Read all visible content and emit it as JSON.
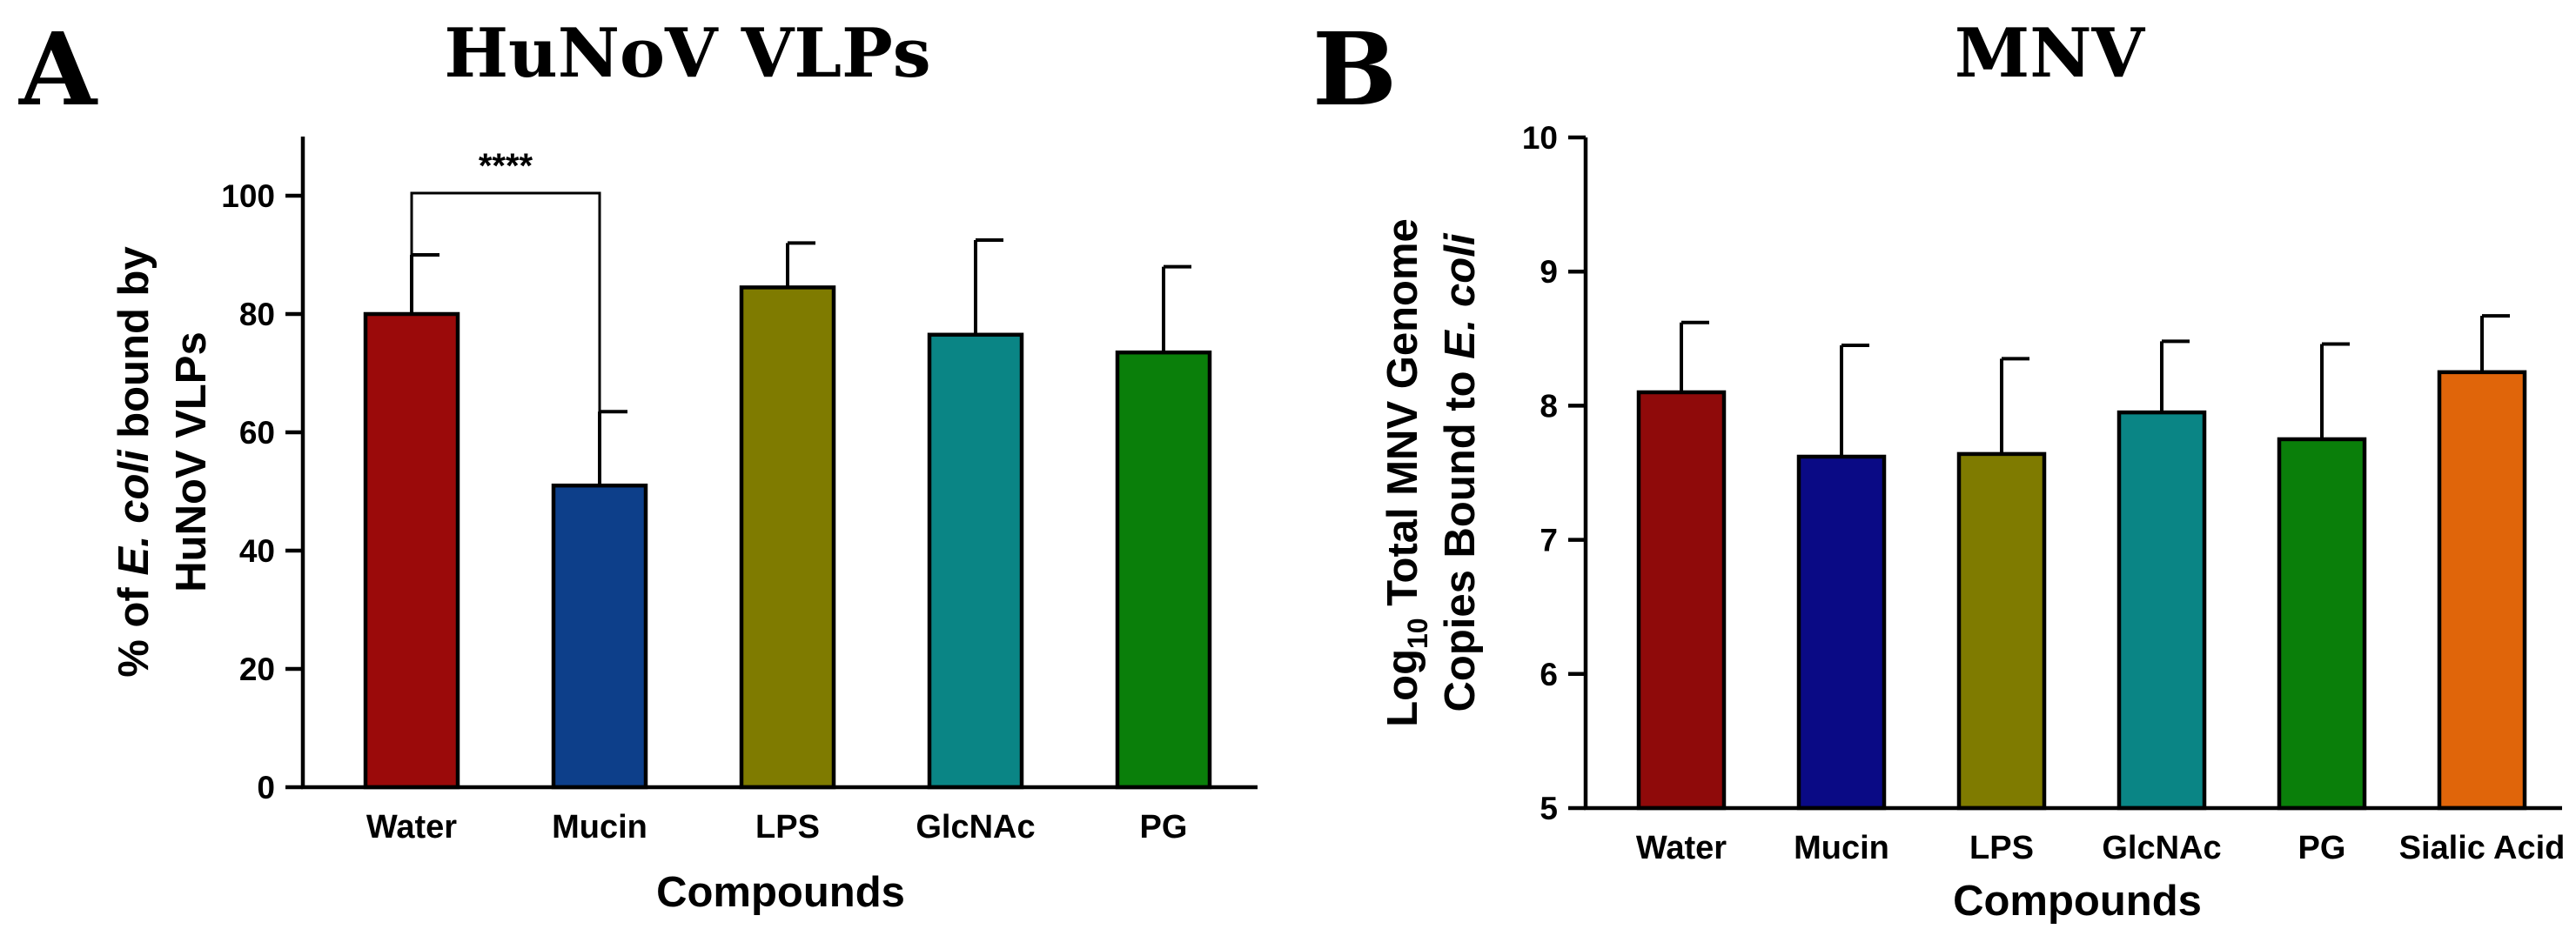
{
  "chart_data": [
    {
      "panel": "A",
      "type": "bar",
      "title": "HuNoV VLPs",
      "xlabel": "Compounds",
      "ylabel_lines": [
        [
          "% of ",
          "E. coli",
          " bound by"
        ],
        [
          "HuNoV VLPs"
        ]
      ],
      "categories": [
        "Water",
        "Mucin",
        "LPS",
        "GlcNAc",
        "PG"
      ],
      "values": [
        80,
        51,
        84.5,
        76.5,
        73.5
      ],
      "errors": [
        10,
        12.5,
        7.5,
        16,
        14.5
      ],
      "colors": [
        "#9b0a0a",
        "#0d3f8a",
        "#7f7b00",
        "#0a8585",
        "#0a7f0a"
      ],
      "ylim": [
        0,
        110
      ],
      "yticks": [
        0,
        20,
        40,
        60,
        80,
        100
      ],
      "ytick_labels": [
        "0",
        "20",
        "40",
        "60",
        "80",
        "100"
      ],
      "annotation": {
        "text": "****",
        "between": [
          "Water",
          "Mucin"
        ]
      }
    },
    {
      "panel": "B",
      "type": "bar",
      "title": "MNV",
      "xlabel": "Compounds",
      "ylabel_lines": [
        [
          "Log",
          "10",
          " Total MNV Genome"
        ],
        [
          "Copies Bound to ",
          "E. coli"
        ]
      ],
      "categories": [
        "Water",
        "Mucin",
        "LPS",
        "GlcNAc",
        "PG",
        "Sialic Acid"
      ],
      "values": [
        8.1,
        7.62,
        7.64,
        7.95,
        7.75,
        8.25
      ],
      "errors": [
        0.52,
        0.83,
        0.71,
        0.53,
        0.71,
        0.42
      ],
      "colors": [
        "#8f0a0a",
        "#0a0a85",
        "#7f7b00",
        "#0a8585",
        "#0a7f0a",
        "#e0650a"
      ],
      "ylim": [
        5,
        10
      ],
      "yticks": [
        5,
        6,
        7,
        8,
        9,
        10
      ],
      "ytick_labels": [
        "5",
        "6",
        "7",
        "8",
        "9",
        "10"
      ]
    }
  ]
}
